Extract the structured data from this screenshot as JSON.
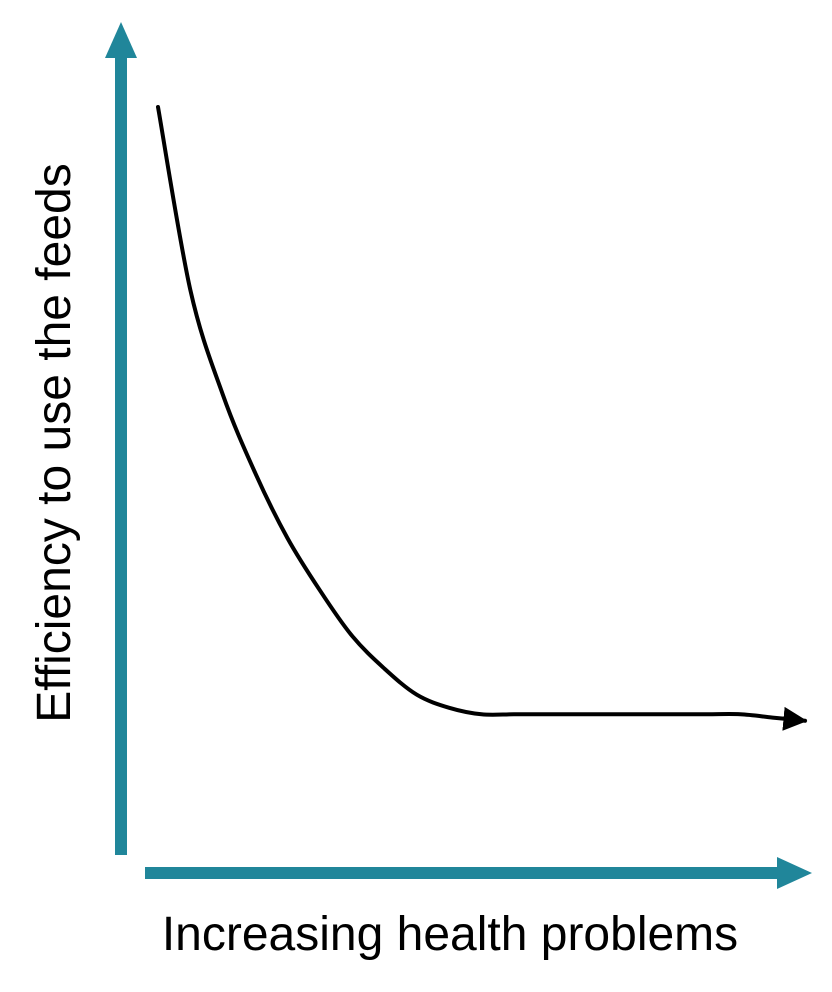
{
  "chart_data": {
    "type": "line",
    "title": "",
    "xlabel": "Increasing health problems",
    "ylabel": "Efficiency to use the feeds",
    "grid": false,
    "legend": "none",
    "axis_color": "#20869a",
    "line_color": "#000000",
    "xlim": [
      0,
      100
    ],
    "ylim": [
      0,
      100
    ],
    "series": [
      {
        "x": [
          0,
          5,
          10,
          15,
          20,
          25,
          30,
          35,
          40,
          45,
          50,
          55,
          60,
          65,
          70,
          75,
          80,
          85,
          90,
          95,
          100
        ],
        "values": [
          100,
          72,
          56,
          44,
          34,
          26,
          19,
          14,
          10,
          8,
          7,
          7,
          7,
          7,
          7,
          7,
          7,
          7,
          7,
          6.5,
          6
        ]
      }
    ]
  }
}
